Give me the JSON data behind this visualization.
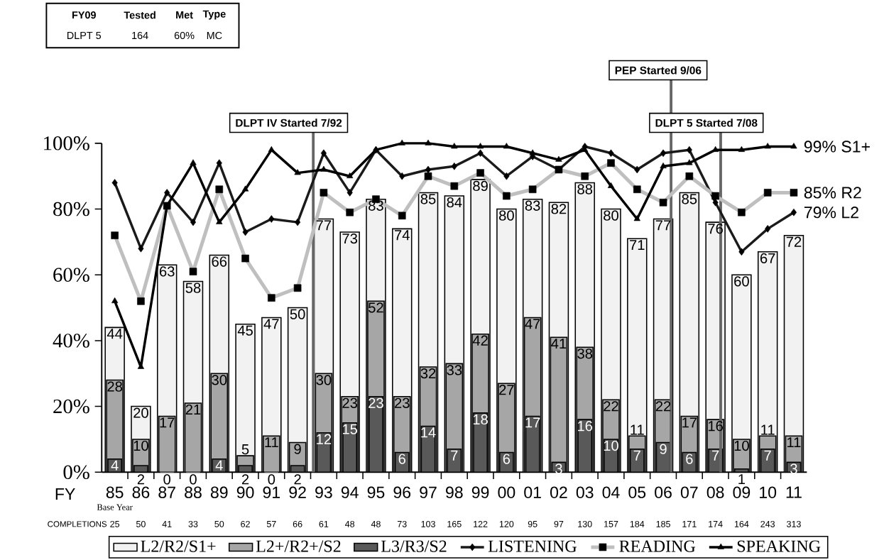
{
  "chart_data": {
    "type": "bar",
    "x": [
      1985,
      1986,
      1987,
      1988,
      1989,
      1990,
      1991,
      1992,
      1993,
      1994,
      1995,
      1996,
      1997,
      1998,
      1999,
      2000,
      2001,
      2002,
      2003,
      2004,
      2005,
      2006,
      2007,
      2008,
      2009,
      2010,
      2011
    ],
    "xlim": [
      1984.5,
      2011.5
    ],
    "xticks": [
      {
        "value": 1985,
        "label": "85"
      },
      {
        "value": 1986,
        "label": "86"
      },
      {
        "value": 1987,
        "label": "87"
      },
      {
        "value": 1988,
        "label": "88"
      },
      {
        "value": 1989,
        "label": "89"
      },
      {
        "value": 1990,
        "label": "90"
      },
      {
        "value": 1991,
        "label": "91"
      },
      {
        "value": 1992,
        "label": "92"
      },
      {
        "value": 1993,
        "label": "93"
      },
      {
        "value": 1994,
        "label": "94"
      },
      {
        "value": 1995,
        "label": "95"
      },
      {
        "value": 1996,
        "label": "96"
      },
      {
        "value": 1997,
        "label": "97"
      },
      {
        "value": 1998,
        "label": "98"
      },
      {
        "value": 1999,
        "label": "99"
      },
      {
        "value": 2000,
        "label": "00"
      },
      {
        "value": 2001,
        "label": "01"
      },
      {
        "value": 2002,
        "label": "02"
      },
      {
        "value": 2003,
        "label": "03"
      },
      {
        "value": 2004,
        "label": "04"
      },
      {
        "value": 2005,
        "label": "05"
      },
      {
        "value": 2006,
        "label": "06"
      },
      {
        "value": 2007,
        "label": "07"
      },
      {
        "value": 2008,
        "label": "08"
      },
      {
        "value": 2009,
        "label": "09"
      },
      {
        "value": 2010,
        "label": "10"
      },
      {
        "value": 2011,
        "label": "11"
      }
    ],
    "xlabel": "FY",
    "ylim": [
      0,
      100
    ],
    "yticks": [
      {
        "value": 0,
        "label": "0%"
      },
      {
        "value": 20,
        "label": "20%"
      },
      {
        "value": 40,
        "label": "40%"
      },
      {
        "value": 60,
        "label": "60%"
      },
      {
        "value": 80,
        "label": "80%"
      },
      {
        "value": 100,
        "label": "100%"
      }
    ],
    "series": [
      {
        "name": "L2/R2/S1+",
        "color": "#f2f2f2",
        "values": [
          44,
          20,
          63,
          58,
          66,
          45,
          47,
          50,
          77,
          73,
          83,
          74,
          85,
          84,
          89,
          80,
          83,
          82,
          88,
          80,
          71,
          77,
          85,
          76,
          60,
          67,
          72
        ],
        "value_labels": [
          "44",
          "20",
          "63",
          "58",
          "66",
          "45",
          "47",
          "50",
          "77",
          "73",
          "83",
          "74",
          "85",
          "84",
          "89",
          "80",
          "83",
          "82",
          "88",
          "80",
          "71",
          "77",
          "85",
          "76",
          "60",
          "67",
          "72"
        ]
      },
      {
        "name": "L2+/R2+/S2",
        "color": "#a6a6a6",
        "values": [
          28,
          10,
          17,
          21,
          30,
          5,
          11,
          9,
          30,
          23,
          52,
          23,
          32,
          33,
          42,
          27,
          47,
          41,
          38,
          22,
          11,
          22,
          17,
          16,
          10,
          11,
          11
        ],
        "value_labels": [
          "28",
          "10",
          "17",
          "21",
          "30",
          "5",
          "11",
          "9",
          "30",
          "23",
          "52",
          "23",
          "32",
          "33",
          "42",
          "27",
          "47",
          "41",
          "38",
          "22",
          "11",
          "22",
          "17",
          "16",
          "10",
          "11",
          "11"
        ]
      },
      {
        "name": "L3/R3/S2",
        "color": "#595959",
        "values": [
          4,
          2,
          0,
          0,
          4,
          2,
          0,
          2,
          12,
          15,
          23,
          6,
          14,
          7,
          18,
          6,
          17,
          3,
          16,
          10,
          7,
          9,
          6,
          7,
          1,
          7,
          3
        ],
        "value_labels": [
          "4",
          "2",
          "0",
          "0",
          "4",
          "2",
          "0",
          "2",
          "12",
          "15",
          "23",
          "6",
          "14",
          "7",
          "18",
          "6",
          "17",
          "3",
          "16",
          "10",
          "7",
          "9",
          "6",
          "7",
          "1",
          "7",
          "3"
        ]
      },
      {
        "name": "LISTENING",
        "type": "line",
        "marker": "diamond",
        "color": "#1a1a1a",
        "values": [
          88,
          68,
          85,
          76,
          94,
          73,
          77,
          76,
          97,
          85,
          98,
          90,
          92,
          93,
          97,
          90,
          96,
          92,
          99,
          97,
          92,
          97,
          98,
          82,
          67,
          74,
          79
        ]
      },
      {
        "name": "READING",
        "type": "line",
        "marker": "square",
        "color": "#bfbfbf",
        "values": [
          72,
          52,
          81,
          61,
          86,
          65,
          53,
          56,
          85,
          79,
          83,
          78,
          90,
          87,
          91,
          84,
          86,
          92,
          90,
          94,
          86,
          82,
          90,
          84,
          79,
          85,
          85
        ]
      },
      {
        "name": "SPEAKING",
        "type": "line",
        "marker": "triangle",
        "color": "#000000",
        "values": [
          52,
          32,
          81,
          94,
          76,
          86,
          98,
          91,
          92,
          90,
          98,
          100,
          100,
          99,
          99,
          99,
          97,
          95,
          98,
          87,
          77,
          93,
          94,
          98,
          98,
          99,
          99
        ]
      }
    ],
    "legend": "bottom",
    "ref_lines": [
      {
        "axis": "x",
        "value": 1992.6,
        "label": "DLPT IV Started 7/92",
        "color": "#666666"
      },
      {
        "axis": "x",
        "value": 2006.3,
        "label": "PEP Started 9/06",
        "color": "#666666"
      },
      {
        "axis": "x",
        "value": 2008.2,
        "label": "DLPT 5 Started 7/08",
        "color": "#666666"
      }
    ],
    "annotations": [
      "FY09",
      "Tested",
      "Met",
      "Type",
      "DLPT 5",
      "164",
      "60%",
      "MC",
      "Base Year",
      "COMPLETIONS",
      "25",
      "50",
      "41",
      "33",
      "50",
      "62",
      "57",
      "66",
      "61",
      "48",
      "48",
      "73",
      "103",
      "165",
      "122",
      "120",
      "95",
      "97",
      "130",
      "157",
      "184",
      "185",
      "171",
      "174",
      "164",
      "243",
      "313",
      "99% S1+",
      "85% R2",
      "79% L2"
    ]
  }
}
